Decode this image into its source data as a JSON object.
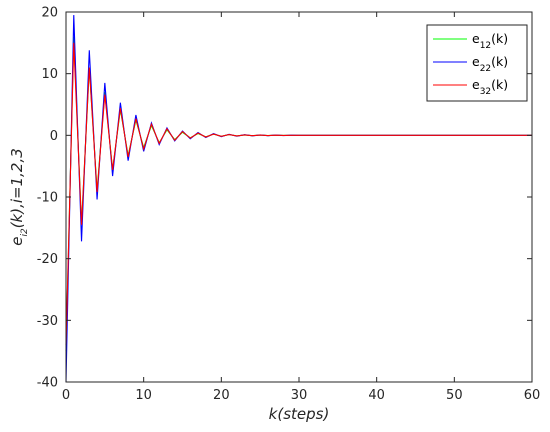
{
  "chart_data": {
    "type": "line",
    "xlabel": "k(steps)",
    "ylabel": {
      "base": "e",
      "sub": "i2",
      "rest": "(k),i=1,2,3"
    },
    "xlim": [
      0,
      60
    ],
    "ylim": [
      -40,
      20
    ],
    "xticks": [
      0,
      10,
      20,
      30,
      40,
      50,
      60
    ],
    "yticks": [
      -40,
      -30,
      -20,
      -10,
      0,
      10,
      20
    ],
    "grid": false,
    "legend_position": "top-right",
    "x": [
      0,
      1,
      2,
      3,
      4,
      5,
      6,
      7,
      8,
      9,
      10,
      11,
      12,
      13,
      14,
      15,
      16,
      17,
      18,
      19,
      20,
      21,
      22,
      23,
      24,
      25,
      26,
      27,
      28,
      29,
      30,
      31,
      32,
      33,
      34,
      35,
      36,
      37,
      38,
      39,
      40,
      41,
      42,
      43,
      44,
      45,
      46,
      47,
      48,
      49,
      50,
      51,
      52,
      53,
      54,
      55,
      56,
      57,
      58,
      59,
      60
    ],
    "series": [
      {
        "name": "e12(k)",
        "label": {
          "base": "e",
          "sub": "12",
          "rest": "(k)"
        },
        "color": "#00ff00",
        "values": [
          -35,
          16,
          -14.5,
          11,
          -9,
          7,
          -5.6,
          4.2,
          -3.3,
          2.5,
          -2,
          1.6,
          -1.2,
          0.9,
          -0.7,
          0.5,
          -0.4,
          0.3,
          -0.25,
          0.2,
          -0.15,
          0.12,
          -0.09,
          0.07,
          -0.05,
          0.04,
          -0.03,
          0.02,
          -0.015,
          0.01,
          0,
          0,
          0,
          0,
          0,
          0,
          0,
          0,
          0,
          0,
          0,
          0,
          0,
          0,
          0,
          0,
          0,
          0,
          0,
          0,
          0,
          0,
          0,
          0,
          0,
          0,
          0,
          0,
          0,
          0,
          0
        ]
      },
      {
        "name": "e22(k)",
        "label": {
          "base": "e",
          "sub": "22",
          "rest": "(k)"
        },
        "color": "#0000ff",
        "values": [
          -40,
          19.5,
          -17.2,
          13.8,
          -10.4,
          8.5,
          -6.6,
          5.3,
          -4.1,
          3.3,
          -2.6,
          2,
          -1.5,
          1.2,
          -0.9,
          0.7,
          -0.55,
          0.45,
          -0.35,
          0.28,
          -0.22,
          0.17,
          -0.13,
          0.1,
          -0.08,
          0.06,
          -0.05,
          0.04,
          -0.03,
          0.02,
          0,
          0,
          0,
          0,
          0,
          0,
          0,
          0,
          0,
          0,
          0,
          0,
          0,
          0,
          0,
          0,
          0,
          0,
          0,
          0,
          0,
          0,
          0,
          0,
          0,
          0,
          0,
          0,
          0,
          0,
          0
        ]
      },
      {
        "name": "e32(k)",
        "label": {
          "base": "e",
          "sub": "32",
          "rest": "(k)"
        },
        "color": "#ff0000",
        "values": [
          -34,
          15,
          -14.5,
          11,
          -9.2,
          6.6,
          -5.6,
          4.4,
          -3.5,
          2.7,
          -2.2,
          1.8,
          -1.3,
          1.05,
          -0.8,
          0.6,
          -0.45,
          0.35,
          -0.27,
          0.2,
          -0.16,
          0.12,
          -0.09,
          0.07,
          -0.05,
          0.04,
          -0.03,
          0.02,
          -0.015,
          0.01,
          0,
          0,
          0,
          0,
          0,
          0,
          0,
          0,
          0,
          0,
          0,
          0,
          0,
          0,
          0,
          0,
          0,
          0,
          0,
          0,
          0,
          0,
          0,
          0,
          0,
          0,
          0,
          0,
          0,
          0,
          0
        ]
      }
    ]
  }
}
